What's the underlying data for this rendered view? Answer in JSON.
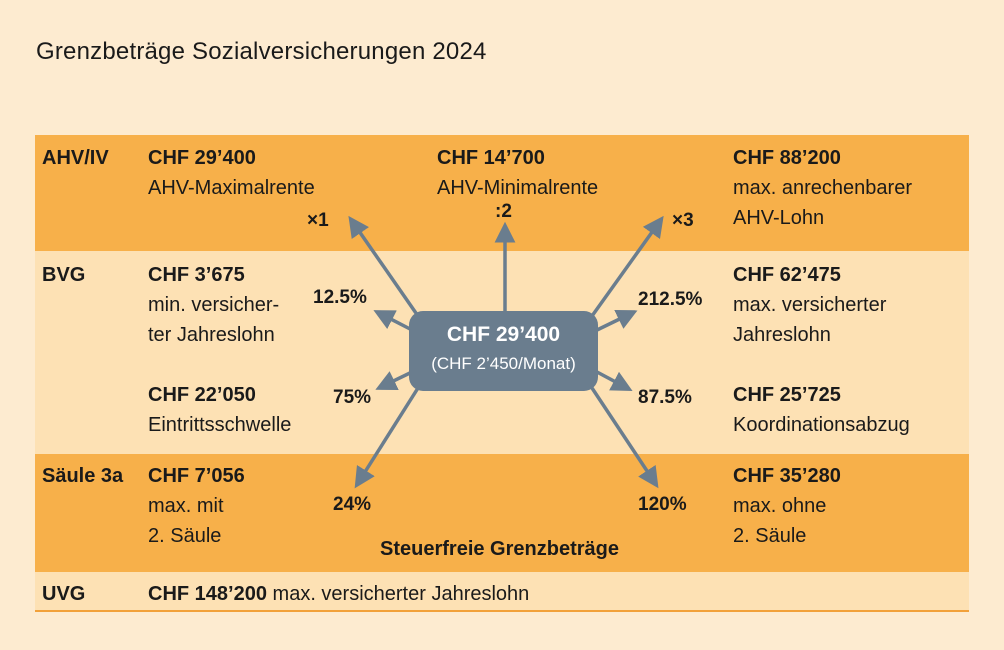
{
  "title": "Grenzbeträge Sozialversicherungen 2024",
  "colors": {
    "band_dark": "#f7b04a",
    "band_light": "#fde1b4",
    "center_box": "#6a7d8e",
    "arrow": "#6a7d8e",
    "background": "#fdebd0"
  },
  "rows": {
    "ahv": "AHV/IV",
    "bvg": "BVG",
    "s3a": "Säule 3a",
    "uvg": "UVG"
  },
  "center": {
    "amount": "CHF 29’400",
    "sub": "(CHF 2’450/Monat)"
  },
  "ahv": {
    "max_rente": {
      "amount": "CHF 29’400",
      "desc": "AHV-Maximalrente",
      "factor": "×1"
    },
    "min_rente": {
      "amount": "CHF 14’700",
      "desc": "AHV-Minimalrente",
      "factor": ":2"
    },
    "max_lohn": {
      "amount": "CHF 88’200",
      "desc1": "max. anrechenbarer",
      "desc2": "AHV-Lohn",
      "factor": "×3"
    }
  },
  "bvg": {
    "min_lohn": {
      "amount": "CHF 3’675",
      "desc1": "min. versicher-",
      "desc2": "ter Jahreslohn",
      "factor": "12.5%"
    },
    "max_lohn": {
      "amount": "CHF 62’475",
      "desc1": "max. versicherter",
      "desc2": "Jahreslohn",
      "factor": "212.5%"
    },
    "eintritt": {
      "amount": "CHF 22’050",
      "desc": "Eintrittsschwelle",
      "factor": "75%"
    },
    "koord": {
      "amount": "CHF 25’725",
      "desc": "Koordinationsabzug",
      "factor": "87.5%"
    }
  },
  "s3a": {
    "mit": {
      "amount": "CHF 7’056",
      "desc1": "max. mit",
      "desc2": "2. Säule",
      "factor": "24%"
    },
    "ohne": {
      "amount": "CHF 35’280",
      "desc1": "max. ohne",
      "desc2": "2. Säule",
      "factor": "120%"
    },
    "caption": "Steuerfreie Grenzbeträge"
  },
  "uvg": {
    "amount": "CHF 148’200",
    "desc": "max. versicherter Jahreslohn"
  }
}
